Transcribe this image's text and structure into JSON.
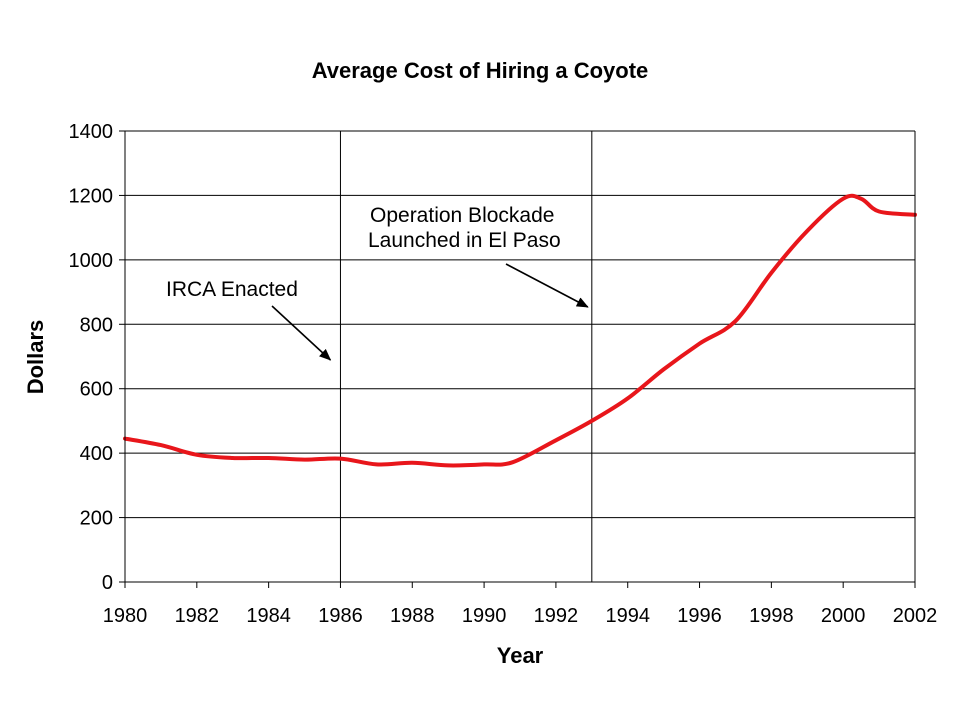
{
  "chart_data": {
    "type": "line",
    "title": "Average Cost of Hiring a Coyote",
    "xlabel": "Year",
    "ylabel": "Dollars",
    "xlim": [
      1980,
      2002
    ],
    "ylim": [
      0,
      1400
    ],
    "x_ticks": [
      1980,
      1982,
      1984,
      1986,
      1988,
      1990,
      1992,
      1994,
      1996,
      1998,
      2000,
      2002
    ],
    "y_ticks": [
      0,
      200,
      400,
      600,
      800,
      1000,
      1200,
      1400
    ],
    "grid": {
      "horizontal": true,
      "vertical": false
    },
    "legend": "none",
    "series": [
      {
        "color": "#e8161b",
        "x": [
          1980,
          1981,
          1982,
          1983,
          1984,
          1985,
          1986,
          1987,
          1988,
          1989,
          1990,
          1990.8,
          1992,
          1993,
          1994,
          1995,
          1996,
          1997,
          1998,
          1999,
          2000,
          2000.5,
          2001,
          2002
        ],
        "y": [
          445,
          425,
          395,
          385,
          385,
          380,
          383,
          365,
          370,
          362,
          365,
          372,
          440,
          500,
          570,
          660,
          740,
          810,
          960,
          1090,
          1190,
          1190,
          1150,
          1140
        ]
      }
    ],
    "event_lines": [
      {
        "x": 1986,
        "label": "IRCA Enacted"
      },
      {
        "x": 1993,
        "label_lines": [
          "Operation Blockade",
          "Launched in El Paso"
        ]
      }
    ]
  }
}
